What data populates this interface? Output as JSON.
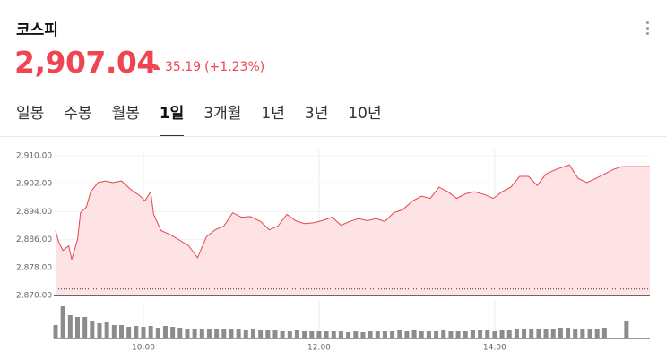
{
  "header": {
    "title": "코스피",
    "price": "2,907.04",
    "change": "35.19",
    "change_pct": "(+1.23%)"
  },
  "tabs": {
    "items": [
      "일봉",
      "주봉",
      "월봉",
      "1일",
      "3개월",
      "1년",
      "3년",
      "10년"
    ],
    "active": 3
  },
  "chart_data": {
    "type": "line",
    "color": "#e5454d",
    "fill": "#fde3e3",
    "x": [
      540,
      542,
      545,
      549,
      551,
      555,
      557,
      561,
      564,
      569,
      574,
      579,
      585,
      591,
      598,
      601,
      605,
      607,
      612,
      618,
      624,
      631,
      637,
      643,
      649,
      655,
      661,
      667,
      673,
      680,
      686,
      692,
      698,
      704,
      710,
      716,
      722,
      729,
      735,
      741,
      747,
      753,
      759,
      765,
      771,
      777,
      784,
      790,
      796,
      802,
      808,
      814,
      820,
      826,
      833,
      839,
      845,
      851,
      857,
      863,
      869,
      875,
      882,
      891,
      897,
      903,
      909,
      915,
      921,
      927,
      946
    ],
    "values": [
      2888.6,
      2885.5,
      2882.9,
      2884.2,
      2880.3,
      2886,
      2893.7,
      2895.3,
      2899.7,
      2902.3,
      2902.8,
      2902.3,
      2902.8,
      2900.5,
      2898.4,
      2897.1,
      2899.7,
      2893.2,
      2888.6,
      2887.5,
      2886,
      2884.2,
      2880.8,
      2886.8,
      2888.8,
      2889.9,
      2893.7,
      2892.4,
      2892.6,
      2891.2,
      2888.8,
      2889.9,
      2893.2,
      2891.4,
      2890.6,
      2890.8,
      2891.4,
      2892.4,
      2890.1,
      2891.2,
      2892,
      2891.4,
      2892,
      2891.2,
      2893.7,
      2894.5,
      2897.1,
      2898.4,
      2897.8,
      2901,
      2899.7,
      2897.8,
      2899.1,
      2899.7,
      2898.9,
      2897.8,
      2899.7,
      2901,
      2904.1,
      2904.1,
      2901.5,
      2904.8,
      2906.1,
      2907.4,
      2903.5,
      2902.3,
      2903.5,
      2904.8,
      2906.1,
      2906.9,
      2906.9
    ],
    "xlim": [
      540,
      946
    ],
    "xticks": [
      {
        "value": 600,
        "label": "10:00"
      },
      {
        "value": 720,
        "label": "12:00"
      },
      {
        "value": 840,
        "label": "14:00"
      }
    ],
    "ylim": [
      2870,
      2910
    ],
    "yticks": [
      {
        "value": 2870,
        "label": "2,870.00"
      },
      {
        "value": 2878,
        "label": "2,878.00"
      },
      {
        "value": 2886,
        "label": "2,886.00"
      },
      {
        "value": 2894,
        "label": "2,894.00"
      },
      {
        "value": 2902,
        "label": "2,902.00"
      },
      {
        "value": 2910,
        "label": "2,910.00"
      }
    ],
    "grid": true,
    "prev_close": 2871.85,
    "volume": {
      "color": "#8c8c8c",
      "x": [
        540,
        545,
        550,
        555,
        560,
        565,
        570,
        575,
        580,
        585,
        590,
        595,
        600,
        605,
        610,
        615,
        620,
        625,
        630,
        635,
        640,
        645,
        650,
        655,
        660,
        665,
        670,
        675,
        680,
        685,
        690,
        695,
        700,
        705,
        710,
        715,
        720,
        725,
        730,
        735,
        740,
        745,
        750,
        755,
        760,
        765,
        770,
        775,
        780,
        785,
        790,
        795,
        800,
        805,
        810,
        815,
        820,
        825,
        830,
        835,
        840,
        845,
        850,
        855,
        860,
        865,
        870,
        875,
        880,
        885,
        890,
        895,
        900,
        905,
        910,
        915,
        930
      ],
      "values": [
        15,
        36,
        26,
        24,
        24,
        19,
        17,
        18,
        15,
        15,
        13,
        14,
        13,
        14,
        12,
        14,
        13,
        12,
        11,
        11,
        10,
        10,
        10,
        11,
        10,
        10,
        9,
        10,
        9,
        9,
        9,
        8,
        8,
        9,
        8,
        8,
        8,
        8,
        8,
        8,
        7,
        8,
        7,
        8,
        8,
        8,
        8,
        9,
        8,
        9,
        8,
        8,
        8,
        9,
        8,
        8,
        8,
        9,
        9,
        9,
        8,
        9,
        9,
        10,
        10,
        10,
        11,
        10,
        10,
        12,
        12,
        11,
        11,
        11,
        11,
        12,
        20
      ],
      "ylim": [
        0,
        42
      ]
    }
  }
}
